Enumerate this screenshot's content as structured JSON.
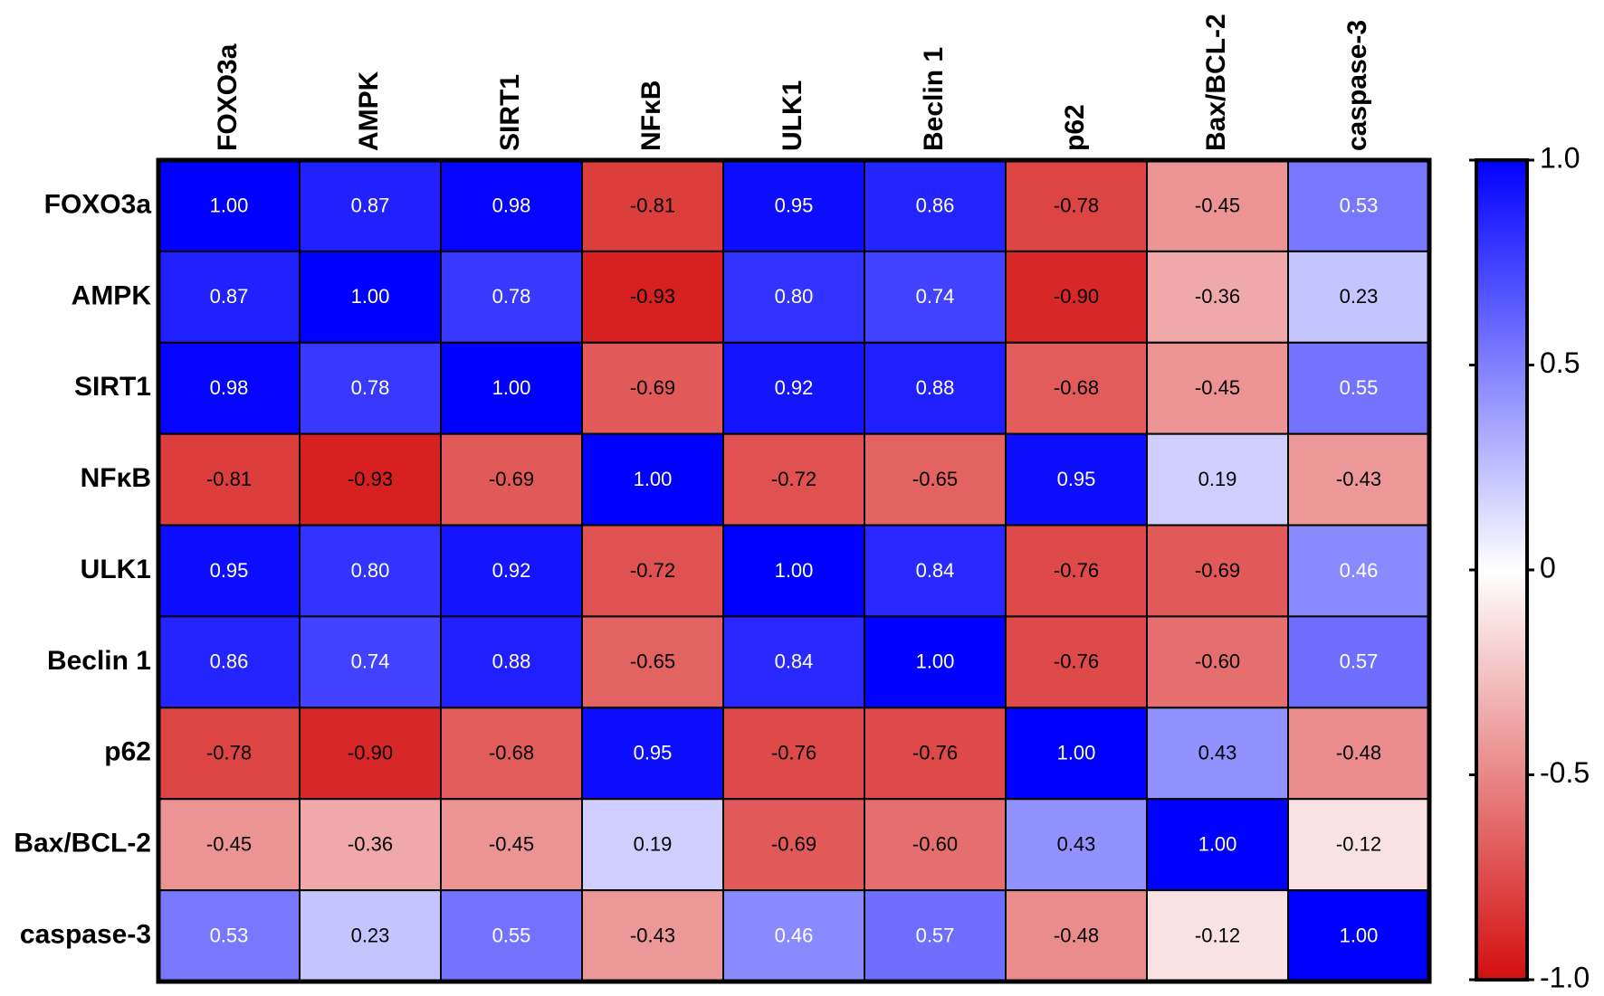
{
  "chart_data": {
    "type": "heatmap",
    "categories": [
      "FOXO3a",
      "AMPK",
      "SIRT1",
      "NFκB",
      "ULK1",
      "Beclin 1",
      "p62",
      "Bax/BCL-2",
      "caspase-3"
    ],
    "values": [
      [
        1.0,
        0.87,
        0.98,
        -0.81,
        0.95,
        0.86,
        -0.78,
        -0.45,
        0.53
      ],
      [
        0.87,
        1.0,
        0.78,
        -0.93,
        0.8,
        0.74,
        -0.9,
        -0.36,
        0.23
      ],
      [
        0.98,
        0.78,
        1.0,
        -0.69,
        0.92,
        0.88,
        -0.68,
        -0.45,
        0.55
      ],
      [
        -0.81,
        -0.93,
        -0.69,
        1.0,
        -0.72,
        -0.65,
        0.95,
        0.19,
        -0.43
      ],
      [
        0.95,
        0.8,
        0.92,
        -0.72,
        1.0,
        0.84,
        -0.76,
        -0.69,
        0.46
      ],
      [
        0.86,
        0.74,
        0.88,
        -0.65,
        0.84,
        1.0,
        -0.76,
        -0.6,
        0.57
      ],
      [
        -0.78,
        -0.9,
        -0.68,
        0.95,
        -0.76,
        -0.76,
        1.0,
        0.43,
        -0.48
      ],
      [
        -0.45,
        -0.36,
        -0.45,
        0.19,
        -0.69,
        -0.6,
        0.43,
        1.0,
        -0.12
      ],
      [
        0.53,
        0.23,
        0.55,
        -0.43,
        0.46,
        0.57,
        -0.48,
        -0.12,
        1.0
      ]
    ],
    "value_labels": [
      [
        "1.00",
        "0.87",
        "0.98",
        "-0.81",
        "0.95",
        "0.86",
        "-0.78",
        "-0.45",
        "0.53"
      ],
      [
        "0.87",
        "1.00",
        "0.78",
        "-0.93",
        "0.80",
        "0.74",
        "-0.90",
        "-0.36",
        "0.23"
      ],
      [
        "0.98",
        "0.78",
        "1.00",
        "-0.69",
        "0.92",
        "0.88",
        "-0.68",
        "-0.45",
        "0.55"
      ],
      [
        "-0.81",
        "-0.93",
        "-0.69",
        "1.00",
        "-0.72",
        "-0.65",
        "0.95",
        "0.19",
        "-0.43"
      ],
      [
        "0.95",
        "0.80",
        "0.92",
        "-0.72",
        "1.00",
        "0.84",
        "-0.76",
        "-0.69",
        "0.46"
      ],
      [
        "0.86",
        "0.74",
        "0.88",
        "-0.65",
        "0.84",
        "1.00",
        "-0.76",
        "-0.60",
        "0.57"
      ],
      [
        "-0.78",
        "-0.90",
        "-0.68",
        "0.95",
        "-0.76",
        "-0.76",
        "1.00",
        "0.43",
        "-0.48"
      ],
      [
        "-0.45",
        "-0.36",
        "-0.45",
        "0.19",
        "-0.69",
        "-0.60",
        "0.43",
        "1.00",
        "-0.12"
      ],
      [
        "0.53",
        "0.23",
        "0.55",
        "-0.43",
        "0.46",
        "0.57",
        "-0.48",
        "-0.12",
        "1.00"
      ]
    ],
    "colormap": {
      "low": "#d40f0f",
      "mid": "#ffffff",
      "high": "#0000ff"
    },
    "clim": [
      -1,
      1
    ],
    "cticks": [
      {
        "value": 1,
        "label": "1.0"
      },
      0.5,
      0,
      -0.5,
      {
        "value": -1,
        "label": "-1.0"
      }
    ]
  }
}
